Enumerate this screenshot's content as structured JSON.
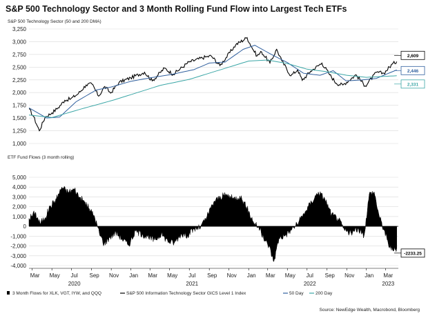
{
  "title": "S&P 500 Technology Sector and 3 Month Rolling Fund Flow into Largest Tech ETFs",
  "source": "Source: NewEdge Wealth, Macrobond, Bloomberg",
  "chart_data": [
    {
      "type": "line",
      "subtitle": "S&P 500 Technology Sector (50 and 200 DMA)",
      "ylim": [
        1000,
        3250
      ],
      "yticks": [
        1000,
        1250,
        1500,
        1750,
        2000,
        2250,
        2500,
        2750,
        3000,
        3250
      ],
      "ytick_labels": [
        "1,000",
        "1,250",
        "1,500",
        "1,750",
        "2,000",
        "2,250",
        "2,500",
        "2,750",
        "3,000",
        "3,250"
      ],
      "grid": true,
      "x_start": "2020-02-20",
      "series": [
        {
          "name": "S&P 500 Information Technology Sector GICS Level 1 Index",
          "color": "#000000",
          "x": [
            "2020-02-20",
            "2020-03-05",
            "2020-03-23",
            "2020-04-10",
            "2020-05-01",
            "2020-05-20",
            "2020-06-10",
            "2020-06-29",
            "2020-07-22",
            "2020-08-15",
            "2020-09-02",
            "2020-09-23",
            "2020-10-12",
            "2020-10-30",
            "2020-11-25",
            "2020-12-31",
            "2021-02-12",
            "2021-03-08",
            "2021-04-15",
            "2021-05-12",
            "2021-06-30",
            "2021-08-20",
            "2021-09-07",
            "2021-10-04",
            "2021-11-22",
            "2021-12-27",
            "2022-01-10",
            "2022-01-27",
            "2022-02-10",
            "2022-03-08",
            "2022-03-29",
            "2022-04-14",
            "2022-05-12",
            "2022-06-02",
            "2022-06-16",
            "2022-07-12",
            "2022-08-16",
            "2022-09-06",
            "2022-09-30",
            "2022-10-20",
            "2022-11-30",
            "2022-12-28",
            "2023-02-02",
            "2023-02-24",
            "2023-03-22",
            "2023-04-05"
          ],
          "values": [
            1680,
            1530,
            1250,
            1520,
            1600,
            1700,
            1850,
            1880,
            1980,
            2150,
            2170,
            1930,
            2120,
            1990,
            2200,
            2290,
            2400,
            2230,
            2480,
            2360,
            2600,
            2700,
            2720,
            2530,
            2940,
            3080,
            2900,
            2720,
            2800,
            2580,
            2850,
            2620,
            2330,
            2450,
            2240,
            2420,
            2580,
            2380,
            2180,
            2150,
            2350,
            2130,
            2400,
            2380,
            2560,
            2609
          ]
        },
        {
          "name": "50 Day",
          "color": "#2f5f9e",
          "x": [
            "2020-02-20",
            "2020-04-15",
            "2020-05-25",
            "2020-07-15",
            "2020-09-15",
            "2020-11-01",
            "2020-12-31",
            "2021-03-01",
            "2021-05-01",
            "2021-07-15",
            "2021-09-01",
            "2021-10-20",
            "2021-12-15",
            "2022-01-20",
            "2022-03-15",
            "2022-05-01",
            "2022-06-20",
            "2022-08-10",
            "2022-09-20",
            "2022-10-30",
            "2022-12-20",
            "2023-02-01",
            "2023-04-05"
          ],
          "values": [
            1700,
            1500,
            1520,
            1820,
            2050,
            2110,
            2220,
            2290,
            2350,
            2450,
            2580,
            2600,
            2850,
            2930,
            2740,
            2590,
            2380,
            2340,
            2430,
            2230,
            2250,
            2280,
            2446
          ]
        },
        {
          "name": "200 Day",
          "color": "#3aa6a6",
          "x": [
            "2020-02-20",
            "2020-05-01",
            "2020-08-01",
            "2020-11-01",
            "2021-01-01",
            "2021-04-01",
            "2021-07-01",
            "2021-10-01",
            "2022-01-01",
            "2022-03-01",
            "2022-05-01",
            "2022-07-01",
            "2022-09-01",
            "2022-11-01",
            "2023-01-01",
            "2023-04-05"
          ],
          "values": [
            1560,
            1510,
            1680,
            1840,
            1960,
            2140,
            2260,
            2440,
            2620,
            2640,
            2570,
            2460,
            2410,
            2340,
            2300,
            2331
          ]
        }
      ],
      "callouts": [
        {
          "value": 2609,
          "label": "2,609",
          "color": "#000000"
        },
        {
          "value": 2446,
          "label": "2,446",
          "color": "#2f5f9e"
        },
        {
          "value": 2331,
          "label": "2,331",
          "color": "#3aa6a6"
        }
      ]
    },
    {
      "type": "area",
      "subtitle": "ETF Fund Flows (3 month rolling)",
      "ylim": [
        -4000,
        5000
      ],
      "yticks": [
        -4000,
        -3000,
        -2000,
        -1000,
        0,
        1000,
        2000,
        3000,
        4000,
        5000
      ],
      "ytick_labels": [
        "-4,000",
        "-3,000",
        "-2,000",
        "-1,000",
        "0",
        "1,000",
        "2,000",
        "3,000",
        "4,000",
        "5,000"
      ],
      "grid": true,
      "series": [
        {
          "name": "3 Month Flows for XLK, VGT, IYW, and QQQ",
          "color": "#000000",
          "x": [
            "2020-02-20",
            "2020-03-10",
            "2020-03-25",
            "2020-04-10",
            "2020-04-25",
            "2020-05-15",
            "2020-06-01",
            "2020-06-20",
            "2020-07-10",
            "2020-07-25",
            "2020-08-10",
            "2020-08-25",
            "2020-09-10",
            "2020-09-25",
            "2020-10-10",
            "2020-10-25",
            "2020-11-15",
            "2020-12-05",
            "2020-12-25",
            "2021-01-15",
            "2021-02-05",
            "2021-02-25",
            "2021-03-15",
            "2021-04-05",
            "2021-04-25",
            "2021-05-15",
            "2021-06-05",
            "2021-06-25",
            "2021-07-15",
            "2021-08-05",
            "2021-08-25",
            "2021-09-15",
            "2021-10-05",
            "2021-10-25",
            "2021-11-15",
            "2021-12-05",
            "2021-12-25",
            "2022-01-15",
            "2022-02-05",
            "2022-02-20",
            "2022-03-05",
            "2022-03-20",
            "2022-04-05",
            "2022-04-25",
            "2022-05-15",
            "2022-06-05",
            "2022-06-25",
            "2022-07-15",
            "2022-08-05",
            "2022-08-25",
            "2022-09-15",
            "2022-10-05",
            "2022-10-25",
            "2022-11-15",
            "2022-12-05",
            "2022-12-25",
            "2023-01-10",
            "2023-01-25",
            "2023-02-10",
            "2023-02-25",
            "2023-03-10",
            "2023-03-25",
            "2023-04-05"
          ],
          "values": [
            800,
            1400,
            300,
            900,
            2000,
            2800,
            4000,
            3500,
            3800,
            3000,
            2500,
            1800,
            1000,
            -700,
            -1800,
            -1200,
            -600,
            -1300,
            -1900,
            -500,
            -800,
            -1200,
            -1400,
            -800,
            -1500,
            -1700,
            -800,
            -900,
            -300,
            -100,
            1000,
            2500,
            3000,
            3200,
            2800,
            3100,
            2000,
            500,
            -300,
            -1500,
            -2000,
            -3600,
            -1200,
            -900,
            -300,
            400,
            1500,
            2500,
            3500,
            2800,
            1200,
            800,
            -400,
            -700,
            -300,
            -900,
            3300,
            3500,
            1000,
            -400,
            -1800,
            -2500,
            -2233
          ]
        }
      ],
      "callouts": [
        {
          "value": -2233,
          "label": "-2233.25",
          "color": "#000000"
        }
      ]
    }
  ],
  "x_axis": {
    "month_ticks": [
      {
        "date": "2020-03-01",
        "label": "Mar"
      },
      {
        "date": "2020-05-01",
        "label": "May"
      },
      {
        "date": "2020-07-01",
        "label": "Jul"
      },
      {
        "date": "2020-09-01",
        "label": "Sep"
      },
      {
        "date": "2020-11-01",
        "label": "Nov"
      },
      {
        "date": "2021-01-01",
        "label": "Jan"
      },
      {
        "date": "2021-03-01",
        "label": "Mar"
      },
      {
        "date": "2021-05-01",
        "label": "May"
      },
      {
        "date": "2021-07-01",
        "label": "Jul"
      },
      {
        "date": "2021-09-01",
        "label": "Sep"
      },
      {
        "date": "2021-11-01",
        "label": "Nov"
      },
      {
        "date": "2022-01-01",
        "label": "Jan"
      },
      {
        "date": "2022-03-01",
        "label": "Mar"
      },
      {
        "date": "2022-05-01",
        "label": "May"
      },
      {
        "date": "2022-07-01",
        "label": "Jul"
      },
      {
        "date": "2022-09-01",
        "label": "Sep"
      },
      {
        "date": "2022-11-01",
        "label": "Nov"
      },
      {
        "date": "2023-01-01",
        "label": "Jan"
      },
      {
        "date": "2023-03-01",
        "label": "Mar"
      }
    ],
    "year_labels": [
      {
        "date": "2020-07-01",
        "label": "2020"
      },
      {
        "date": "2021-07-01",
        "label": "2021"
      },
      {
        "date": "2022-07-01",
        "label": "2022"
      },
      {
        "date": "2023-03-01",
        "label": "2023"
      }
    ]
  },
  "legend": {
    "placement": "bottom",
    "items": [
      {
        "label": "3 Month Flows for XLK, VGT, IYW, and QQQ",
        "color": "#000000",
        "kind": "box"
      },
      {
        "label": "S&P 500 Information Technology Sector GICS Level 1 Index",
        "color": "#000000",
        "kind": "line"
      },
      {
        "label": "50 Day",
        "color": "#2f5f9e",
        "kind": "line"
      },
      {
        "label": "200 Day",
        "color": "#3aa6a6",
        "kind": "line"
      }
    ]
  }
}
